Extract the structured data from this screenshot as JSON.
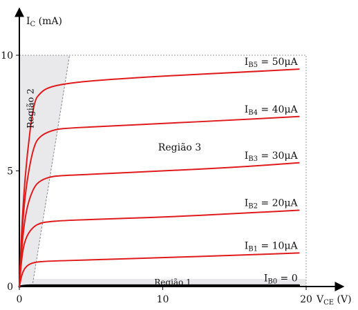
{
  "chart_data": {
    "type": "line",
    "title": "",
    "ylabel": {
      "main": "I",
      "sub": "C",
      "unit": " (mA)"
    },
    "xlabel": {
      "main": "V",
      "sub": "CE",
      "unit": " (V)"
    },
    "xlim": [
      0,
      20
    ],
    "ylim": [
      0,
      10
    ],
    "x_ticks": [
      0,
      10,
      20
    ],
    "y_ticks": [
      0,
      5,
      10
    ],
    "x_tick_labels": [
      "0",
      "10",
      "20"
    ],
    "y_tick_labels": [
      "0",
      "5",
      "10"
    ],
    "grid": false,
    "regions": [
      {
        "name": "region-1",
        "label": "Região 1"
      },
      {
        "name": "region-2",
        "label": "Região 2"
      },
      {
        "name": "region-3",
        "label": "Região 3"
      }
    ],
    "series": [
      {
        "name": "IB0 = 0",
        "label": {
          "main": "I",
          "sub": "B0",
          "rest": " = 0"
        },
        "x": [
          0,
          0.5,
          1,
          2,
          5,
          10,
          15,
          19.5
        ],
        "y": [
          0,
          0.05,
          0.05,
          0.05,
          0.05,
          0.05,
          0.05,
          0.05
        ]
      },
      {
        "name": "IB1 = 10μA",
        "label": {
          "main": "I",
          "sub": "B1",
          "rest": " = 10μA"
        },
        "x": [
          0,
          0.2,
          0.5,
          1,
          2,
          5,
          10,
          15,
          19.5
        ],
        "y": [
          0,
          0.6,
          0.9,
          1.05,
          1.1,
          1.15,
          1.25,
          1.35,
          1.45
        ]
      },
      {
        "name": "IB2 = 20μA",
        "label": {
          "main": "I",
          "sub": "B2",
          "rest": " = 20μA"
        },
        "x": [
          0,
          0.2,
          0.5,
          1,
          1.5,
          2,
          3,
          5,
          10,
          15,
          19.5
        ],
        "y": [
          0,
          1.5,
          2.2,
          2.6,
          2.75,
          2.8,
          2.85,
          2.9,
          3.0,
          3.15,
          3.3
        ]
      },
      {
        "name": "IB3 = 30μA",
        "label": {
          "main": "I",
          "sub": "B3",
          "rest": " = 30μA"
        },
        "x": [
          0,
          0.2,
          0.5,
          1,
          1.5,
          2.2,
          3,
          5,
          10,
          15,
          19.5
        ],
        "y": [
          0,
          2.0,
          3.4,
          4.3,
          4.6,
          4.75,
          4.8,
          4.85,
          5.0,
          5.15,
          5.35
        ]
      },
      {
        "name": "IB4 = 40μA",
        "label": {
          "main": "I",
          "sub": "B4",
          "rest": " = 40μA"
        },
        "x": [
          0,
          0.2,
          0.5,
          1,
          1.5,
          2.5,
          3.5,
          5,
          10,
          15,
          19.5
        ],
        "y": [
          0,
          2.6,
          4.5,
          6.1,
          6.55,
          6.8,
          6.85,
          6.9,
          7.05,
          7.2,
          7.35
        ]
      },
      {
        "name": "IB5 = 50μA",
        "label": {
          "main": "I",
          "sub": "B5",
          "rest": " = 50μA"
        },
        "x": [
          0,
          0.2,
          0.5,
          1,
          1.5,
          2,
          3,
          5,
          10,
          15,
          19.5
        ],
        "y": [
          0,
          3.0,
          5.5,
          8.0,
          8.4,
          8.6,
          8.75,
          8.9,
          9.1,
          9.25,
          9.4
        ]
      }
    ],
    "colors": {
      "curve": "#e01a1a",
      "axis": "#000000",
      "region_fill": "#e9e9ec",
      "dashed": "#888888"
    }
  }
}
